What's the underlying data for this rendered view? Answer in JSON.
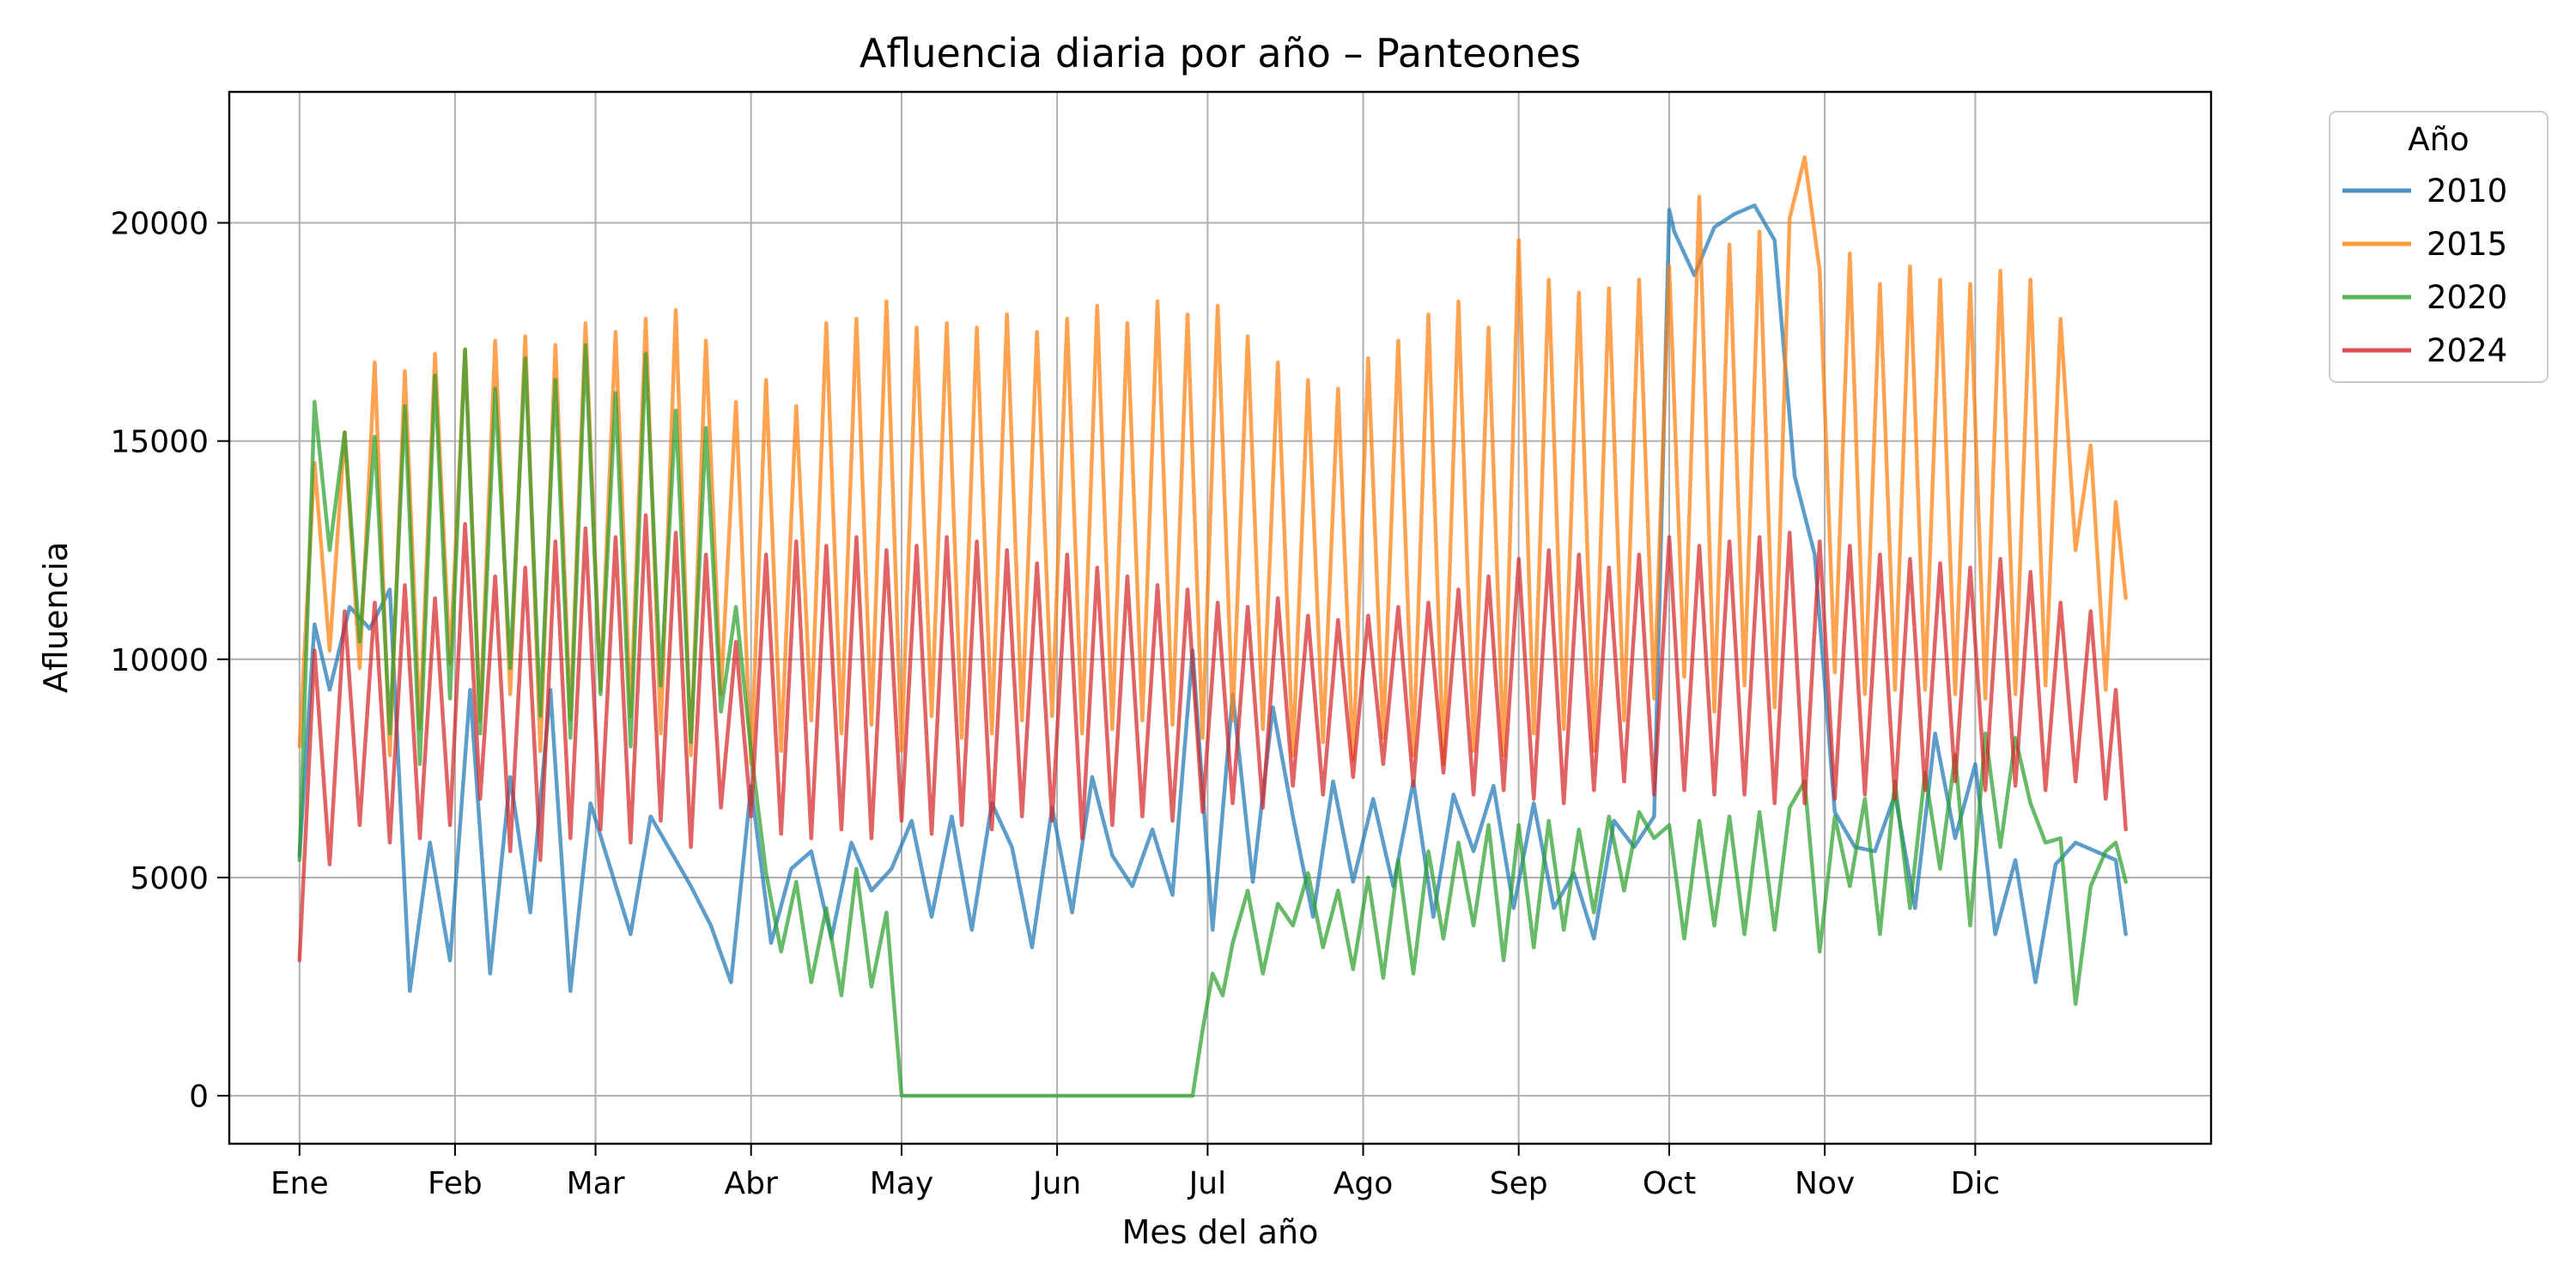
{
  "chart_data": {
    "type": "line",
    "title": "Afluencia diaria por año – Panteones",
    "xlabel": "Mes del año",
    "ylabel": "Afluencia",
    "xlim": [
      -14,
      381
    ],
    "ylim": [
      -1100,
      23000
    ],
    "grid": true,
    "legend": {
      "title": "Año",
      "placement": "outside-top-right"
    },
    "x_ticks": [
      {
        "label": "Ene",
        "day": 0
      },
      {
        "label": "Feb",
        "day": 31
      },
      {
        "label": "Mar",
        "day": 59
      },
      {
        "label": "Abr",
        "day": 90
      },
      {
        "label": "May",
        "day": 120
      },
      {
        "label": "Jun",
        "day": 151
      },
      {
        "label": "Jul",
        "day": 181
      },
      {
        "label": "Ago",
        "day": 212
      },
      {
        "label": "Sep",
        "day": 243
      },
      {
        "label": "Oct",
        "day": 273
      },
      {
        "label": "Nov",
        "day": 304
      },
      {
        "label": "Dic",
        "day": 334
      }
    ],
    "y_ticks": [
      0,
      5000,
      10000,
      15000,
      20000
    ],
    "series": [
      {
        "name": "2010",
        "color": "#1f77b4",
        "x": [
          0,
          3,
          6,
          10,
          14,
          18,
          22,
          26,
          30,
          34,
          38,
          42,
          46,
          50,
          54,
          58,
          62,
          66,
          70,
          74,
          78,
          82,
          86,
          90,
          94,
          98,
          102,
          106,
          110,
          114,
          118,
          122,
          126,
          130,
          134,
          138,
          142,
          146,
          150,
          154,
          158,
          162,
          166,
          170,
          174,
          178,
          182,
          186,
          190,
          194,
          198,
          202,
          206,
          210,
          214,
          218,
          222,
          226,
          230,
          234,
          238,
          242,
          246,
          250,
          254,
          258,
          262,
          266,
          270,
          273,
          274,
          278,
          282,
          286,
          290,
          294,
          298,
          302,
          306,
          310,
          314,
          318,
          322,
          326,
          330,
          334,
          338,
          342,
          346,
          350,
          354,
          358,
          362,
          364
        ],
        "y": [
          5500,
          10800,
          9300,
          11200,
          10700,
          11600,
          2400,
          5800,
          3100,
          9300,
          2800,
          7300,
          4200,
          9300,
          2400,
          6700,
          5200,
          3700,
          6400,
          5600,
          4800,
          3900,
          2600,
          7100,
          3500,
          5200,
          5600,
          3600,
          5800,
          4700,
          5200,
          6300,
          4100,
          6400,
          3800,
          6700,
          5700,
          3400,
          6600,
          4200,
          7300,
          5500,
          4800,
          6100,
          4600,
          10200,
          3800,
          9200,
          4900,
          8900,
          6400,
          4100,
          7200,
          4900,
          6800,
          4800,
          7200,
          4100,
          6900,
          5600,
          7100,
          4300,
          6700,
          4300,
          5100,
          3600,
          6300,
          5700,
          6400,
          20300,
          19800,
          18800,
          19900,
          20200,
          20400,
          19600,
          14200,
          12400,
          6500,
          5700,
          5600,
          6900,
          4300,
          8300,
          5900,
          7600,
          3700,
          5400,
          2600,
          5300,
          5800,
          5600,
          5400,
          3700
        ]
      },
      {
        "name": "2015",
        "color": "#ff7f0e",
        "x": [
          0,
          3,
          6,
          9,
          12,
          15,
          18,
          21,
          24,
          27,
          30,
          33,
          36,
          39,
          42,
          45,
          48,
          51,
          54,
          57,
          60,
          63,
          66,
          69,
          72,
          75,
          78,
          81,
          84,
          87,
          90,
          93,
          96,
          99,
          102,
          105,
          108,
          111,
          114,
          117,
          120,
          123,
          126,
          129,
          132,
          135,
          138,
          141,
          144,
          147,
          150,
          153,
          156,
          159,
          162,
          165,
          168,
          171,
          174,
          177,
          180,
          183,
          186,
          189,
          192,
          195,
          198,
          201,
          204,
          207,
          210,
          213,
          216,
          219,
          222,
          225,
          228,
          231,
          234,
          237,
          240,
          243,
          246,
          249,
          252,
          255,
          258,
          261,
          264,
          267,
          270,
          273,
          276,
          279,
          282,
          285,
          288,
          291,
          294,
          297,
          300,
          303,
          306,
          309,
          312,
          315,
          318,
          321,
          324,
          327,
          330,
          333,
          336,
          339,
          342,
          345,
          348,
          351,
          354,
          357,
          360,
          362,
          364
        ],
        "y": [
          8000,
          14500,
          10200,
          15200,
          9800,
          16800,
          7800,
          16600,
          8400,
          17000,
          9900,
          17100,
          8600,
          17300,
          9200,
          17400,
          7900,
          17200,
          8600,
          17700,
          9300,
          17500,
          8700,
          17800,
          8300,
          18000,
          7800,
          17300,
          9200,
          15900,
          7600,
          16400,
          7900,
          15800,
          8600,
          17700,
          8300,
          17800,
          8500,
          18200,
          7900,
          17600,
          8700,
          17700,
          8200,
          17600,
          8300,
          17900,
          8600,
          17500,
          8700,
          17800,
          8300,
          18100,
          8400,
          17700,
          8600,
          18200,
          8500,
          17900,
          8200,
          18100,
          8600,
          17400,
          8400,
          16800,
          7800,
          16400,
          8100,
          16200,
          7700,
          16900,
          8200,
          17300,
          7800,
          17900,
          7600,
          18200,
          7900,
          17600,
          7800,
          19600,
          8300,
          18700,
          8400,
          18400,
          7900,
          18500,
          8600,
          18700,
          9100,
          19000,
          9600,
          20600,
          8800,
          19500,
          9400,
          19800,
          8900,
          20100,
          21500,
          18900,
          9700,
          19300,
          9200,
          18600,
          9300,
          19000,
          9300,
          18700,
          9200,
          18600,
          9100,
          18900,
          9200,
          18700,
          9400,
          17800,
          12500,
          14900,
          9300,
          13600,
          11400
        ]
      },
      {
        "name": "2020",
        "color": "#2ca02c",
        "x": [
          0,
          3,
          6,
          9,
          12,
          15,
          18,
          21,
          24,
          27,
          30,
          33,
          36,
          39,
          42,
          45,
          48,
          51,
          54,
          57,
          60,
          63,
          66,
          69,
          72,
          75,
          78,
          81,
          84,
          87,
          90,
          93,
          96,
          99,
          102,
          105,
          108,
          111,
          114,
          117,
          120,
          123,
          126,
          129,
          132,
          135,
          138,
          141,
          144,
          147,
          150,
          153,
          156,
          159,
          162,
          165,
          168,
          171,
          174,
          177,
          178,
          180,
          182,
          184,
          186,
          189,
          192,
          195,
          198,
          201,
          204,
          207,
          210,
          213,
          216,
          219,
          222,
          225,
          228,
          231,
          234,
          237,
          240,
          243,
          246,
          249,
          252,
          255,
          258,
          261,
          264,
          267,
          270,
          273,
          276,
          279,
          282,
          285,
          288,
          291,
          294,
          297,
          300,
          303,
          306,
          309,
          312,
          315,
          318,
          321,
          324,
          327,
          330,
          333,
          336,
          339,
          342,
          345,
          348,
          351,
          354,
          357,
          360,
          362,
          364
        ],
        "y": [
          5400,
          15900,
          12500,
          15200,
          10400,
          15100,
          8300,
          15800,
          7600,
          16500,
          9100,
          17100,
          8300,
          16200,
          9800,
          16900,
          8700,
          16400,
          8200,
          17200,
          9200,
          16100,
          8000,
          17000,
          9400,
          15700,
          8100,
          15300,
          8800,
          11200,
          7900,
          5100,
          3300,
          4900,
          2600,
          4300,
          2300,
          5200,
          2500,
          4200,
          0,
          0,
          0,
          0,
          0,
          0,
          0,
          0,
          0,
          0,
          0,
          0,
          0,
          0,
          0,
          0,
          0,
          0,
          0,
          0,
          0,
          1500,
          2800,
          2300,
          3500,
          4700,
          2800,
          4400,
          3900,
          5100,
          3400,
          4700,
          2900,
          5000,
          2700,
          5400,
          2800,
          5600,
          3600,
          5800,
          3900,
          6200,
          3100,
          6200,
          3400,
          6300,
          3800,
          6100,
          4200,
          6400,
          4700,
          6500,
          5900,
          6200,
          3600,
          6300,
          3900,
          6400,
          3700,
          6500,
          3800,
          6600,
          7200,
          3300,
          6400,
          4800,
          6800,
          3700,
          7200,
          4300,
          7400,
          5200,
          7800,
          3900,
          8300,
          5700,
          8200,
          6700,
          5800,
          5900,
          2100,
          4800,
          5600,
          5800,
          4900
        ]
      },
      {
        "name": "2024",
        "color": "#d62728",
        "x": [
          0,
          3,
          6,
          9,
          12,
          15,
          18,
          21,
          24,
          27,
          30,
          33,
          36,
          39,
          42,
          45,
          48,
          51,
          54,
          57,
          60,
          63,
          66,
          69,
          72,
          75,
          78,
          81,
          84,
          87,
          90,
          93,
          96,
          99,
          102,
          105,
          108,
          111,
          114,
          117,
          120,
          123,
          126,
          129,
          132,
          135,
          138,
          141,
          144,
          147,
          150,
          153,
          156,
          159,
          162,
          165,
          168,
          171,
          174,
          177,
          180,
          183,
          186,
          189,
          192,
          195,
          198,
          201,
          204,
          207,
          210,
          213,
          216,
          219,
          222,
          225,
          228,
          231,
          234,
          237,
          240,
          243,
          246,
          249,
          252,
          255,
          258,
          261,
          264,
          267,
          270,
          273,
          276,
          279,
          282,
          285,
          288,
          291,
          294,
          297,
          300,
          303,
          306,
          309,
          312,
          315,
          318,
          321,
          324,
          327,
          330,
          333,
          336,
          339,
          342,
          345,
          348,
          351,
          354,
          357,
          360,
          362,
          364
        ],
        "y": [
          3100,
          10200,
          5300,
          11100,
          6200,
          11300,
          5800,
          11700,
          5900,
          11400,
          6200,
          13100,
          6800,
          11900,
          5600,
          12100,
          5400,
          12700,
          5900,
          13000,
          6100,
          12800,
          5800,
          13300,
          6300,
          12900,
          5700,
          12400,
          6600,
          10400,
          6400,
          12400,
          6000,
          12700,
          5900,
          12600,
          6100,
          12800,
          5900,
          12500,
          6300,
          12600,
          6000,
          12800,
          6200,
          12700,
          6100,
          12500,
          6400,
          12200,
          6300,
          12400,
          5900,
          12100,
          6200,
          11900,
          6400,
          11700,
          6300,
          11600,
          6500,
          11300,
          6700,
          11200,
          6600,
          11400,
          7100,
          11000,
          6900,
          10900,
          7300,
          11000,
          7600,
          11200,
          7100,
          11300,
          7400,
          11600,
          6900,
          11900,
          7000,
          12300,
          6800,
          12500,
          6700,
          12400,
          7000,
          12100,
          7200,
          12400,
          6900,
          12800,
          7000,
          12600,
          6900,
          12700,
          6900,
          12800,
          6700,
          12900,
          6700,
          12700,
          6800,
          12600,
          6900,
          12400,
          6800,
          12300,
          7000,
          12200,
          7200,
          12100,
          7000,
          12300,
          7100,
          12000,
          7000,
          11300,
          7200,
          11100,
          6800,
          9300,
          6100
        ]
      }
    ]
  }
}
